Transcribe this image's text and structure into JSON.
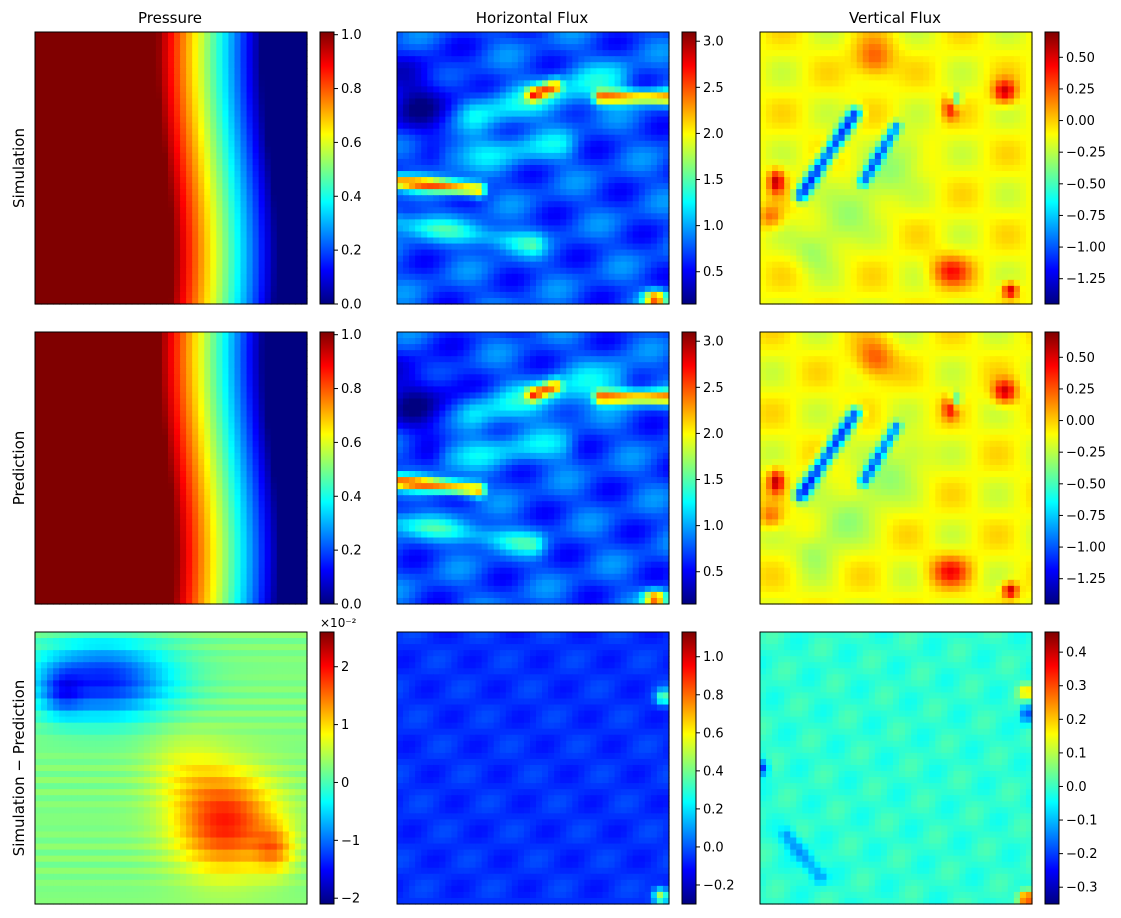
{
  "figure": {
    "column_titles": [
      "Pressure",
      "Horizontal Flux",
      "Vertical Flux"
    ],
    "row_labels": [
      "Simulation",
      "Prediction",
      "Simulation − Prediction"
    ],
    "colormap": "jet",
    "colormap_stops": [
      "#00007f",
      "#0000ff",
      "#007fff",
      "#00ffff",
      "#7fff7f",
      "#ffff00",
      "#ff7f00",
      "#ff0000",
      "#7f0000"
    ]
  },
  "chart_data": [
    {
      "type": "heatmap",
      "row": "Simulation",
      "column": "Pressure",
      "field": "pressure",
      "colorbar": {
        "min": 0.0,
        "max": 1.01,
        "ticks": [
          "0.0",
          "0.2",
          "0.4",
          "0.6",
          "0.8",
          "1.0"
        ],
        "tick_values": [
          0,
          0.2,
          0.4,
          0.6,
          0.8,
          1.0
        ]
      }
    },
    {
      "type": "heatmap",
      "row": "Simulation",
      "column": "Horizontal Flux",
      "field": "hflux",
      "colorbar": {
        "min": 0.15,
        "max": 3.1,
        "ticks": [
          "0.5",
          "1.0",
          "1.5",
          "2.0",
          "2.5",
          "3.0"
        ],
        "tick_values": [
          0.5,
          1.0,
          1.5,
          2.0,
          2.5,
          3.0
        ]
      }
    },
    {
      "type": "heatmap",
      "row": "Simulation",
      "column": "Vertical Flux",
      "field": "vflux",
      "colorbar": {
        "min": -1.45,
        "max": 0.7,
        "ticks": [
          "0.50",
          "0.25",
          "0.00",
          "−0.25",
          "−0.50",
          "−0.75",
          "−1.00",
          "−1.25"
        ],
        "tick_values": [
          0.5,
          0.25,
          0,
          -0.25,
          -0.5,
          -0.75,
          -1.0,
          -1.25
        ]
      }
    },
    {
      "type": "heatmap",
      "row": "Prediction",
      "column": "Pressure",
      "field": "pressure",
      "colorbar": {
        "min": 0.0,
        "max": 1.01,
        "ticks": [
          "0.0",
          "0.2",
          "0.4",
          "0.6",
          "0.8",
          "1.0"
        ],
        "tick_values": [
          0,
          0.2,
          0.4,
          0.6,
          0.8,
          1.0
        ]
      }
    },
    {
      "type": "heatmap",
      "row": "Prediction",
      "column": "Horizontal Flux",
      "field": "hflux",
      "colorbar": {
        "min": 0.15,
        "max": 3.1,
        "ticks": [
          "0.5",
          "1.0",
          "1.5",
          "2.0",
          "2.5",
          "3.0"
        ],
        "tick_values": [
          0.5,
          1.0,
          1.5,
          2.0,
          2.5,
          3.0
        ]
      }
    },
    {
      "type": "heatmap",
      "row": "Prediction",
      "column": "Vertical Flux",
      "field": "vflux",
      "colorbar": {
        "min": -1.45,
        "max": 0.7,
        "ticks": [
          "0.50",
          "0.25",
          "0.00",
          "−0.25",
          "−0.50",
          "−0.75",
          "−1.00",
          "−1.25"
        ],
        "tick_values": [
          0.5,
          0.25,
          0,
          -0.25,
          -0.5,
          -0.75,
          -1.0,
          -1.25
        ]
      }
    },
    {
      "type": "heatmap",
      "row": "Simulation − Prediction",
      "column": "Pressure",
      "field": "pdiff",
      "colorbar": {
        "min": -2.1,
        "max": 2.6,
        "ticks": [
          "2",
          "1",
          "0",
          "−1",
          "−2"
        ],
        "tick_values": [
          2,
          1,
          0,
          -1,
          -2
        ],
        "offset_text": "×10⁻²"
      }
    },
    {
      "type": "heatmap",
      "row": "Simulation − Prediction",
      "column": "Horizontal Flux",
      "field": "hdiff",
      "colorbar": {
        "min": -0.3,
        "max": 1.13,
        "ticks": [
          "1.0",
          "0.8",
          "0.6",
          "0.4",
          "0.2",
          "0.0",
          "−0.2"
        ],
        "tick_values": [
          1.0,
          0.8,
          0.6,
          0.4,
          0.2,
          0,
          -0.2
        ]
      }
    },
    {
      "type": "heatmap",
      "row": "Simulation − Prediction",
      "column": "Vertical Flux",
      "field": "vdiff",
      "colorbar": {
        "min": -0.35,
        "max": 0.46,
        "ticks": [
          "0.4",
          "0.3",
          "0.2",
          "0.1",
          "0.0",
          "−0.1",
          "−0.2",
          "−0.3"
        ],
        "tick_values": [
          0.4,
          0.3,
          0.2,
          0.1,
          0,
          -0.1,
          -0.2,
          -0.3
        ]
      }
    }
  ]
}
